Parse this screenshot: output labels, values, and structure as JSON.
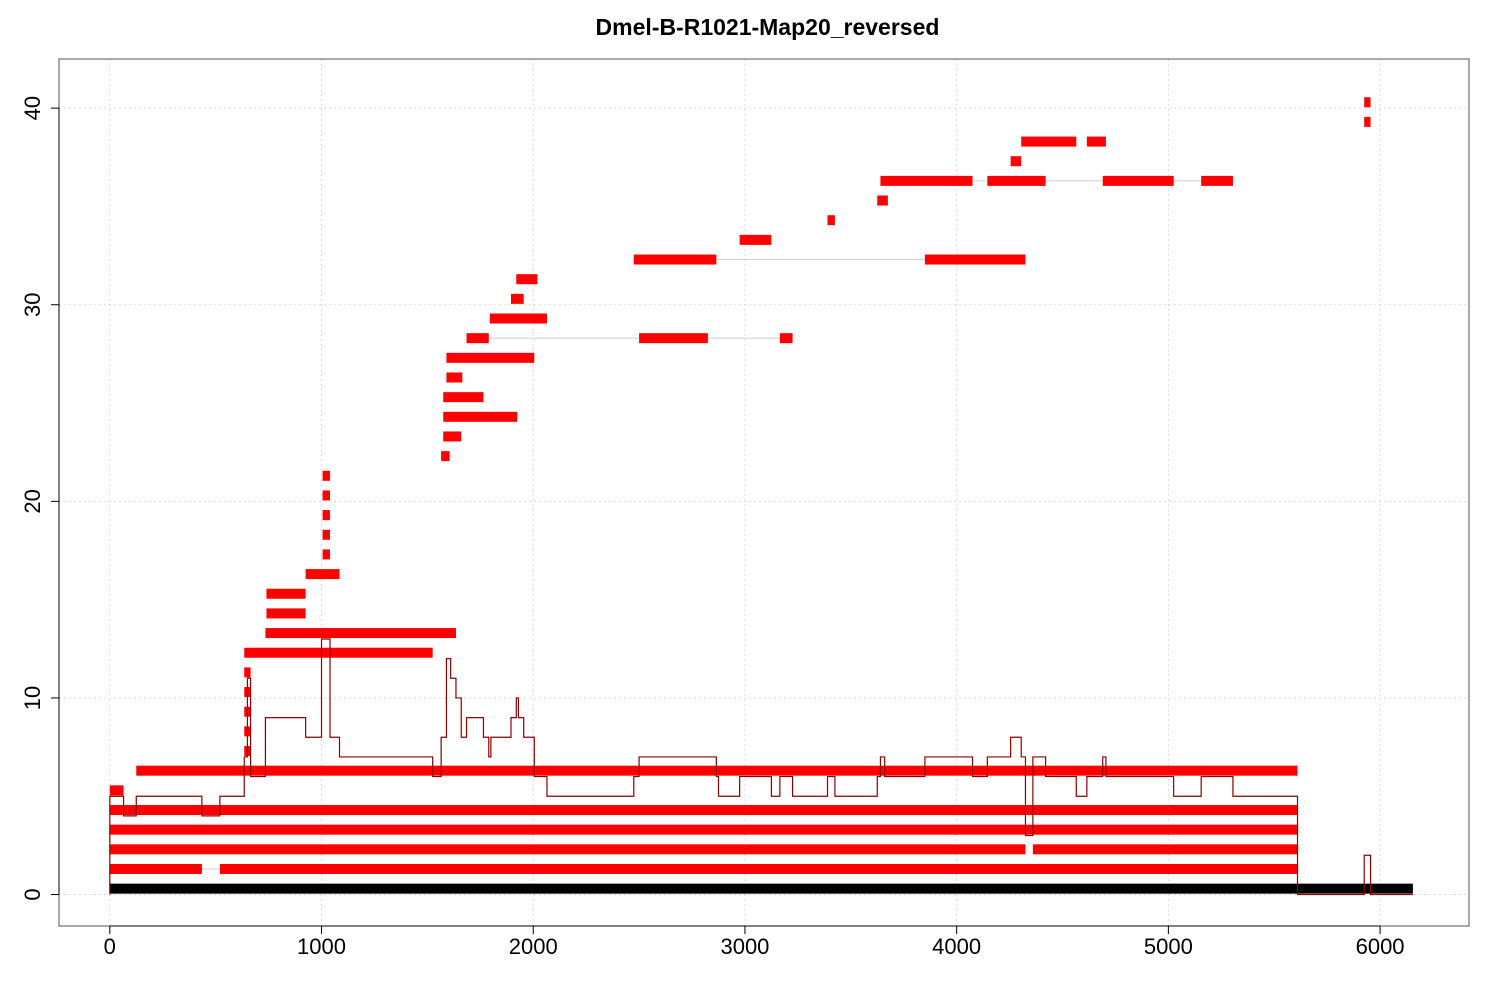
{
  "chart_data": {
    "type": "scatter",
    "title": "Dmel-B-R1021-Map20_reversed",
    "xlabel": "",
    "ylabel": "",
    "xlim": [
      -240,
      6420
    ],
    "ylim": [
      -1.6,
      42.5
    ],
    "xticks": [
      0,
      1000,
      2000,
      3000,
      4000,
      5000,
      6000
    ],
    "yticks": [
      0,
      10,
      20,
      30,
      40
    ],
    "grid": true,
    "series": [
      {
        "kind": "reference",
        "color": "#000000",
        "segments": [
          [
            0,
            6155,
            0.3
          ]
        ]
      },
      {
        "kind": "alignments",
        "color": "#ff0000",
        "segments": [
          [
            0,
            435,
            1.3
          ],
          [
            520,
            5610,
            1.3
          ],
          [
            0,
            4325,
            2.3
          ],
          [
            4360,
            5610,
            2.3
          ],
          [
            0,
            5610,
            3.3
          ],
          [
            0,
            5610,
            4.3
          ],
          [
            0,
            65,
            5.3
          ],
          [
            125,
            5610,
            6.3
          ],
          [
            635,
            665,
            7.3
          ],
          [
            635,
            665,
            8.3
          ],
          [
            635,
            665,
            9.3
          ],
          [
            635,
            665,
            10.3
          ],
          [
            635,
            665,
            11.3
          ],
          [
            635,
            1525,
            12.3
          ],
          [
            735,
            1635,
            13.3
          ],
          [
            740,
            925,
            14.3
          ],
          [
            740,
            925,
            15.3
          ],
          [
            925,
            1085,
            16.3
          ],
          [
            1005,
            1040,
            17.3
          ],
          [
            1005,
            1040,
            18.3
          ],
          [
            1005,
            1040,
            19.3
          ],
          [
            1005,
            1040,
            20.3
          ],
          [
            1005,
            1040,
            21.3
          ],
          [
            1565,
            1605,
            22.3
          ],
          [
            1575,
            1660,
            23.3
          ],
          [
            1575,
            1925,
            24.3
          ],
          [
            1575,
            1765,
            25.3
          ],
          [
            1590,
            1665,
            26.3
          ],
          [
            1590,
            2005,
            27.3
          ],
          [
            1685,
            1790,
            28.3
          ],
          [
            2500,
            2825,
            28.3
          ],
          [
            3165,
            3225,
            28.3
          ],
          [
            1795,
            2065,
            29.3
          ],
          [
            1895,
            1955,
            30.3
          ],
          [
            1920,
            2020,
            31.3
          ],
          [
            2475,
            2865,
            32.3
          ],
          [
            3850,
            4325,
            32.3
          ],
          [
            2975,
            3125,
            33.3
          ],
          [
            3390,
            3425,
            34.3
          ],
          [
            3625,
            3675,
            35.3
          ],
          [
            3640,
            4075,
            36.3
          ],
          [
            4145,
            4420,
            36.3
          ],
          [
            4690,
            5025,
            36.3
          ],
          [
            5155,
            5305,
            36.3
          ],
          [
            4255,
            4305,
            37.3
          ],
          [
            4305,
            4565,
            38.3
          ],
          [
            4615,
            4705,
            38.3
          ],
          [
            5925,
            5955,
            39.3
          ],
          [
            5925,
            5955,
            40.3
          ]
        ],
        "connectors": [
          [
            1790,
            3165,
            28.3
          ],
          [
            2865,
            3850,
            32.3
          ],
          [
            4075,
            5305,
            36.3
          ],
          [
            435,
            520,
            1.3
          ]
        ]
      },
      {
        "kind": "coverage",
        "color": "#8b0000",
        "steps": [
          [
            0,
            5
          ],
          [
            65,
            4
          ],
          [
            125,
            5
          ],
          [
            435,
            4
          ],
          [
            520,
            5
          ],
          [
            635,
            7
          ],
          [
            650,
            11
          ],
          [
            665,
            6
          ],
          [
            735,
            9
          ],
          [
            925,
            8
          ],
          [
            1000,
            13
          ],
          [
            1040,
            8
          ],
          [
            1085,
            7
          ],
          [
            1525,
            6
          ],
          [
            1565,
            8
          ],
          [
            1590,
            12
          ],
          [
            1610,
            11
          ],
          [
            1635,
            10
          ],
          [
            1660,
            8
          ],
          [
            1685,
            9
          ],
          [
            1765,
            8
          ],
          [
            1790,
            7
          ],
          [
            1800,
            8
          ],
          [
            1895,
            9
          ],
          [
            1920,
            10
          ],
          [
            1930,
            9
          ],
          [
            1955,
            8
          ],
          [
            2005,
            6
          ],
          [
            2065,
            5
          ],
          [
            2475,
            6
          ],
          [
            2500,
            7
          ],
          [
            2865,
            6
          ],
          [
            2875,
            5
          ],
          [
            2975,
            6
          ],
          [
            3125,
            5
          ],
          [
            3165,
            6
          ],
          [
            3225,
            5
          ],
          [
            3390,
            6
          ],
          [
            3425,
            5
          ],
          [
            3625,
            6
          ],
          [
            3640,
            7
          ],
          [
            3660,
            6
          ],
          [
            3850,
            7
          ],
          [
            4075,
            6
          ],
          [
            4145,
            7
          ],
          [
            4255,
            8
          ],
          [
            4305,
            7
          ],
          [
            4325,
            3
          ],
          [
            4360,
            7
          ],
          [
            4420,
            6
          ],
          [
            4565,
            5
          ],
          [
            4615,
            6
          ],
          [
            4690,
            7
          ],
          [
            4705,
            6
          ],
          [
            5025,
            5
          ],
          [
            5155,
            6
          ],
          [
            5305,
            5
          ],
          [
            5610,
            0
          ],
          [
            5925,
            2
          ],
          [
            5955,
            0
          ],
          [
            6155,
            0
          ]
        ]
      }
    ]
  }
}
